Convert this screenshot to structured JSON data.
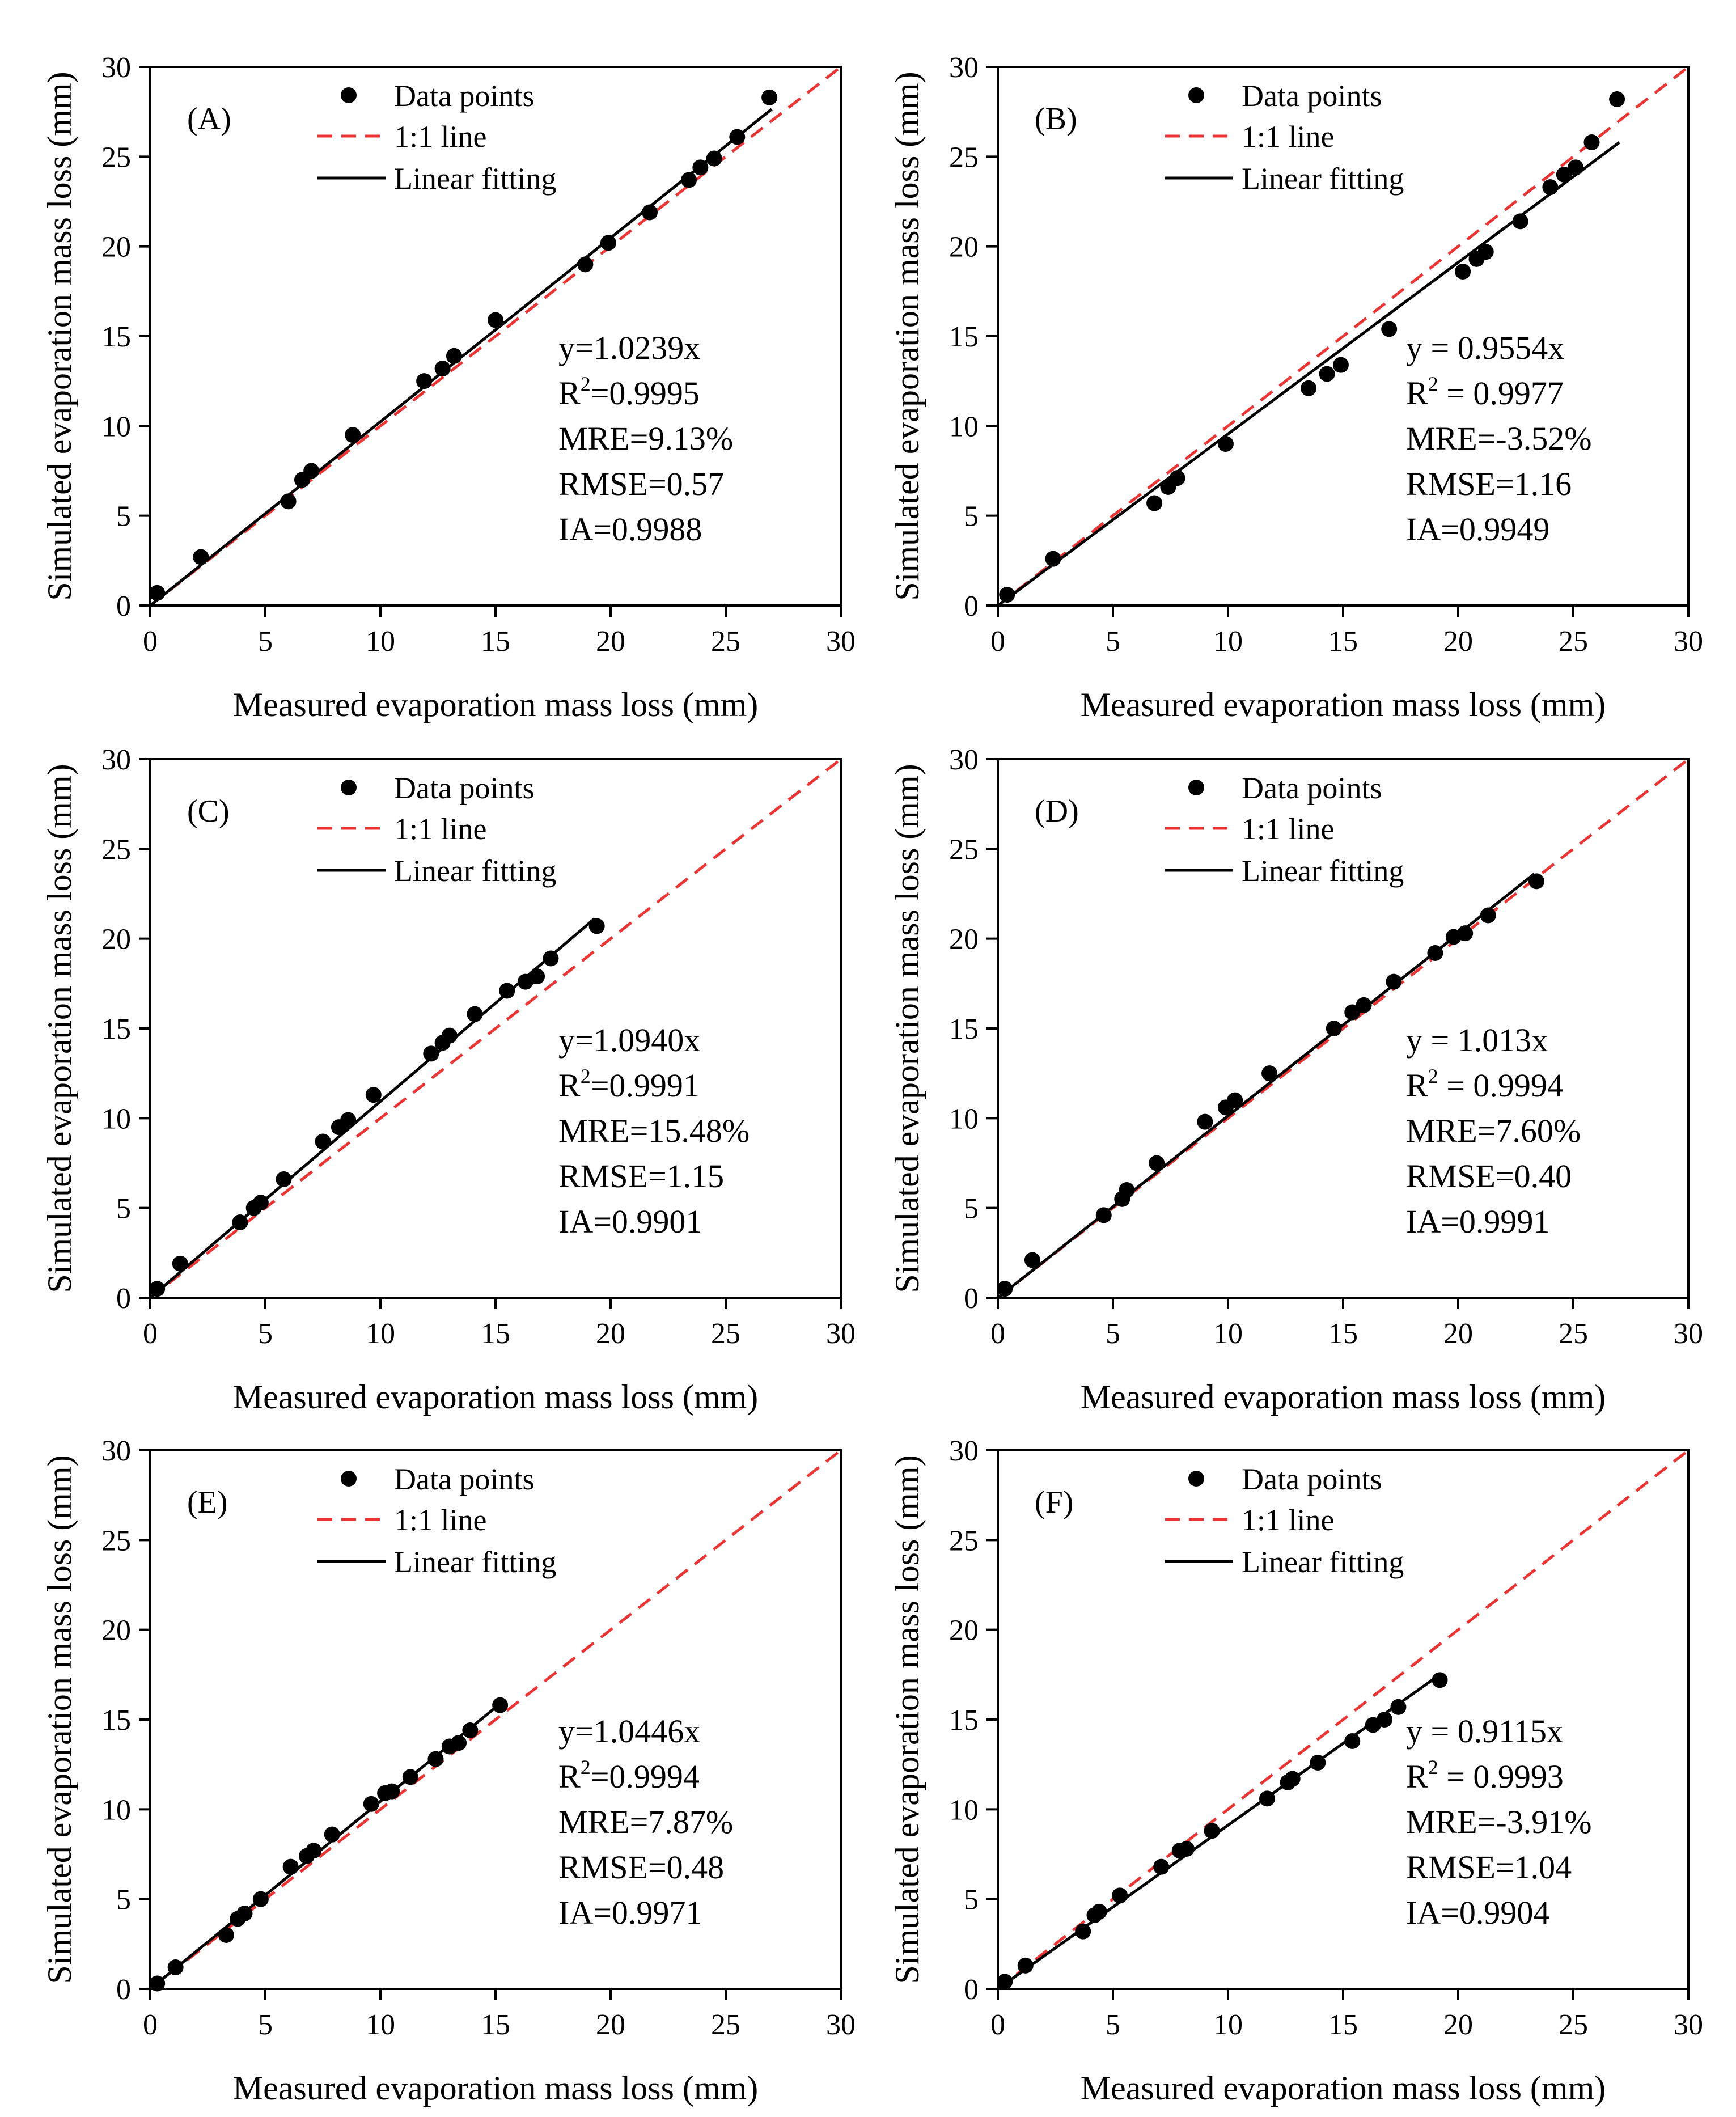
{
  "chart_data": [
    {
      "type": "scatter",
      "panel": "(A)",
      "xlabel": "Measured evaporation mass loss (mm)",
      "ylabel": "Simulated evaporation mass loss (mm)",
      "xlim": [
        0,
        30
      ],
      "ylim": [
        0,
        30
      ],
      "xticks": [
        "0",
        "5",
        "10",
        "15",
        "20",
        "25",
        "30"
      ],
      "yticks": [
        "0",
        "5",
        "10",
        "15",
        "20",
        "25",
        "30"
      ],
      "legend": {
        "points": "Data points",
        "identity": "1:1 line",
        "fit": "Linear fitting"
      },
      "fit_slope": 1.0239,
      "fit_x_range": [
        0,
        27
      ],
      "stats": {
        "equation": "y=1.0239x",
        "r2_prefix": "R",
        "r2_exp": "2",
        "r2_value": "=0.9995",
        "mre": "MRE=9.13%",
        "rmse": "RMSE=0.57",
        "ia": "IA=0.9988"
      },
      "x": [
        0.3,
        2.2,
        6.0,
        6.6,
        7.0,
        8.8,
        11.9,
        12.7,
        13.2,
        15.0,
        18.9,
        19.9,
        21.7,
        23.4,
        23.9,
        24.5,
        25.5,
        26.9
      ],
      "y": [
        0.7,
        2.7,
        5.8,
        7.0,
        7.5,
        9.5,
        12.5,
        13.2,
        13.9,
        15.9,
        19.0,
        20.2,
        21.9,
        23.7,
        24.4,
        24.9,
        26.1,
        28.3
      ]
    },
    {
      "type": "scatter",
      "panel": "(B)",
      "xlabel": "Measured evaporation mass loss (mm)",
      "ylabel": "Simulated evaporation mass loss (mm)",
      "xlim": [
        0,
        30
      ],
      "ylim": [
        0,
        30
      ],
      "xticks": [
        "0",
        "5",
        "10",
        "15",
        "20",
        "25",
        "30"
      ],
      "yticks": [
        "0",
        "5",
        "10",
        "15",
        "20",
        "25",
        "30"
      ],
      "legend": {
        "points": "Data points",
        "identity": "1:1 line",
        "fit": "Linear fitting"
      },
      "fit_slope": 0.9554,
      "fit_x_range": [
        0,
        27
      ],
      "stats": {
        "equation": "y = 0.9554x",
        "r2_prefix": "R",
        "r2_exp": "2",
        "r2_value": " = 0.9977",
        "mre": "MRE=-3.52%",
        "rmse": "RMSE=1.16",
        "ia": "IA=0.9949"
      },
      "x": [
        0.4,
        2.4,
        6.8,
        7.4,
        7.8,
        9.9,
        13.5,
        14.3,
        14.9,
        17.0,
        20.2,
        20.8,
        21.2,
        22.7,
        24.0,
        24.6,
        25.1,
        25.8,
        26.9
      ],
      "y": [
        0.6,
        2.6,
        5.7,
        6.6,
        7.1,
        9.0,
        12.1,
        12.9,
        13.4,
        15.4,
        18.6,
        19.3,
        19.7,
        21.4,
        23.3,
        24.0,
        24.4,
        25.8,
        28.2
      ]
    },
    {
      "type": "scatter",
      "panel": "(C)",
      "xlabel": "Measured evaporation mass loss (mm)",
      "ylabel": "Simulated evaporation mass loss (mm)",
      "xlim": [
        0,
        30
      ],
      "ylim": [
        0,
        30
      ],
      "xticks": [
        "0",
        "5",
        "10",
        "15",
        "20",
        "25",
        "30"
      ],
      "yticks": [
        "0",
        "5",
        "10",
        "15",
        "20",
        "25",
        "30"
      ],
      "legend": {
        "points": "Data points",
        "identity": "1:1 line",
        "fit": "Linear fitting"
      },
      "fit_slope": 1.094,
      "fit_x_range": [
        0,
        19.3
      ],
      "stats": {
        "equation": "y=1.0940x",
        "r2_prefix": "R",
        "r2_exp": "2",
        "r2_value": "=0.9991",
        "mre": "MRE=15.48%",
        "rmse": "RMSE=1.15",
        "ia": "IA=0.9901"
      },
      "x": [
        0.3,
        1.3,
        3.9,
        4.5,
        4.8,
        5.8,
        7.5,
        8.2,
        8.6,
        9.7,
        12.2,
        12.7,
        13.0,
        14.1,
        15.5,
        16.3,
        16.8,
        17.4,
        19.4
      ],
      "y": [
        0.5,
        1.9,
        4.2,
        5.0,
        5.3,
        6.6,
        8.7,
        9.5,
        9.9,
        11.3,
        13.6,
        14.2,
        14.6,
        15.8,
        17.1,
        17.6,
        17.9,
        18.9,
        20.7
      ]
    },
    {
      "type": "scatter",
      "panel": "(D)",
      "xlabel": "Measured evaporation mass loss (mm)",
      "ylabel": "Simulated evaporation mass loss (mm)",
      "xlim": [
        0,
        30
      ],
      "ylim": [
        0,
        30
      ],
      "xticks": [
        "0",
        "5",
        "10",
        "15",
        "20",
        "25",
        "30"
      ],
      "yticks": [
        "0",
        "5",
        "10",
        "15",
        "20",
        "25",
        "30"
      ],
      "legend": {
        "points": "Data points",
        "identity": "1:1 line",
        "fit": "Linear fitting"
      },
      "fit_slope": 1.013,
      "fit_x_range": [
        0,
        23.3
      ],
      "stats": {
        "equation": "y = 1.013x",
        "r2_prefix": "R",
        "r2_exp": "2",
        "r2_value": " = 0.9994",
        "mre": "MRE=7.60%",
        "rmse": "RMSE=0.40",
        "ia": "IA=0.9991"
      },
      "x": [
        0.3,
        1.5,
        4.6,
        5.4,
        5.6,
        6.9,
        9.0,
        9.9,
        10.3,
        11.8,
        14.6,
        15.4,
        15.9,
        17.2,
        19.0,
        19.8,
        20.3,
        21.3,
        23.4
      ],
      "y": [
        0.5,
        2.1,
        4.6,
        5.5,
        6.0,
        7.5,
        9.8,
        10.6,
        11.0,
        12.5,
        15.0,
        15.9,
        16.3,
        17.6,
        19.2,
        20.1,
        20.3,
        21.3,
        23.2
      ]
    },
    {
      "type": "scatter",
      "panel": "(E)",
      "xlabel": "Measured evaporation mass loss (mm)",
      "ylabel": "Simulated evaporation mass loss (mm)",
      "xlim": [
        0,
        30
      ],
      "ylim": [
        0,
        30
      ],
      "xticks": [
        "0",
        "5",
        "10",
        "15",
        "20",
        "25",
        "30"
      ],
      "yticks": [
        "0",
        "5",
        "10",
        "15",
        "20",
        "25",
        "30"
      ],
      "legend": {
        "points": "Data points",
        "identity": "1:1 line",
        "fit": "Linear fitting"
      },
      "fit_slope": 1.0446,
      "fit_x_range": [
        0,
        15.2
      ],
      "stats": {
        "equation": "y=1.0446x",
        "r2_prefix": "R",
        "r2_exp": "2",
        "r2_value": "=0.9994",
        "mre": "MRE=7.87%",
        "rmse": "RMSE=0.48",
        "ia": "IA=0.9971"
      },
      "x": [
        0.3,
        1.1,
        3.3,
        3.8,
        4.1,
        4.8,
        6.1,
        6.8,
        7.1,
        7.9,
        9.6,
        10.2,
        10.5,
        11.3,
        12.4,
        13.0,
        13.4,
        13.9,
        15.2
      ],
      "y": [
        0.3,
        1.2,
        3.0,
        3.9,
        4.2,
        5.0,
        6.8,
        7.4,
        7.7,
        8.6,
        10.3,
        10.9,
        11.0,
        11.8,
        12.8,
        13.5,
        13.7,
        14.4,
        15.8
      ]
    },
    {
      "type": "scatter",
      "panel": "(F)",
      "xlabel": "Measured evaporation mass loss (mm)",
      "ylabel": "Simulated evaporation mass loss (mm)",
      "xlim": [
        0,
        30
      ],
      "ylim": [
        0,
        30
      ],
      "xticks": [
        "0",
        "5",
        "10",
        "15",
        "20",
        "25",
        "30"
      ],
      "yticks": [
        "0",
        "5",
        "10",
        "15",
        "20",
        "25",
        "30"
      ],
      "legend": {
        "points": "Data points",
        "identity": "1:1 line",
        "fit": "Linear fitting"
      },
      "fit_slope": 0.9115,
      "fit_x_range": [
        0,
        19.2
      ],
      "stats": {
        "equation": "y = 0.9115x",
        "r2_prefix": "R",
        "r2_exp": "2",
        "r2_value": " = 0.9993",
        "mre": "MRE=-3.91%",
        "rmse": "RMSE=1.04",
        "ia": "IA=0.9904"
      },
      "x": [
        0.3,
        1.2,
        3.7,
        4.2,
        4.4,
        5.3,
        7.1,
        7.9,
        8.2,
        9.3,
        11.7,
        12.6,
        12.8,
        13.9,
        15.4,
        16.3,
        16.8,
        17.4,
        19.2
      ],
      "y": [
        0.4,
        1.3,
        3.2,
        4.1,
        4.3,
        5.2,
        6.8,
        7.7,
        7.8,
        8.8,
        10.6,
        11.5,
        11.7,
        12.6,
        13.8,
        14.7,
        15.0,
        15.7,
        17.2
      ]
    }
  ],
  "colors": {
    "points": "#000000",
    "fit": "#000000",
    "identity": "#ee3333",
    "axis": "#000000"
  }
}
